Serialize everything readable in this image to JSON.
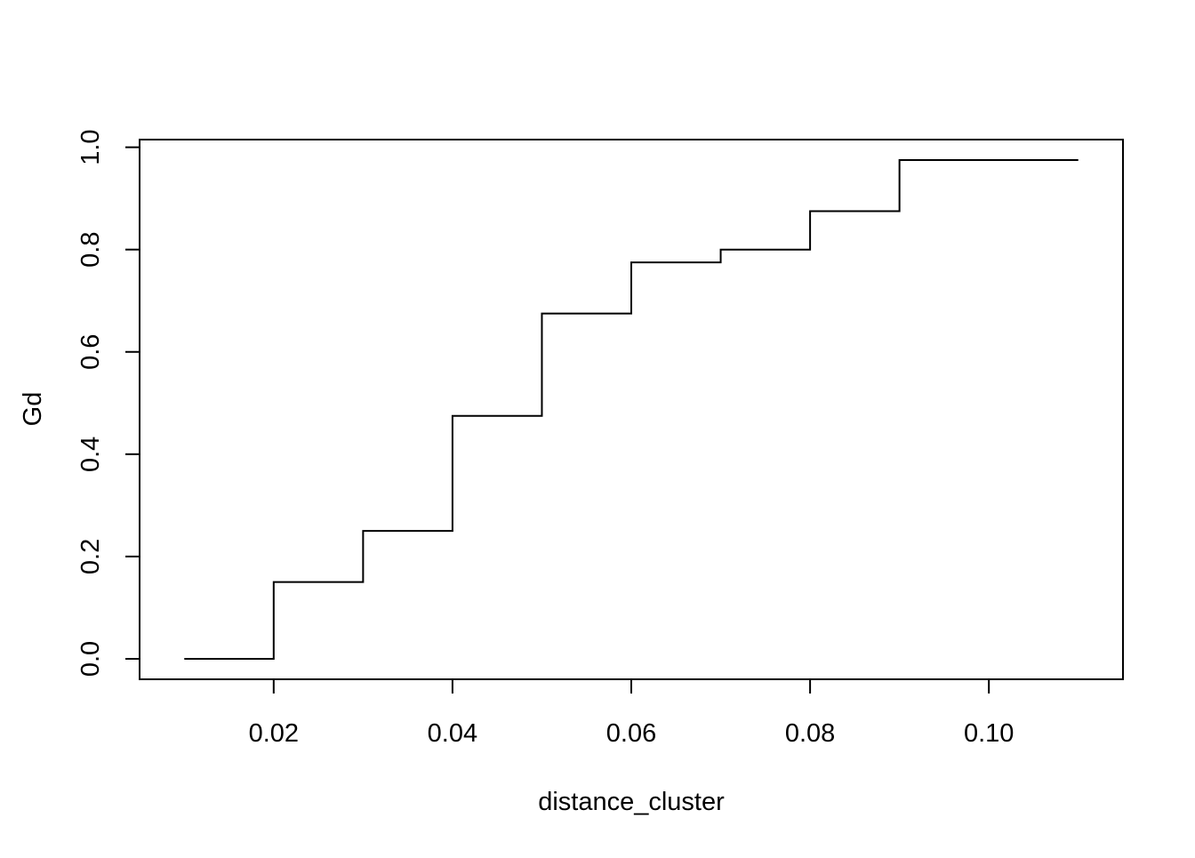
{
  "chart_data": {
    "type": "line",
    "subtype": "step",
    "title": "",
    "xlabel": "distance_cluster",
    "ylabel": "Gd",
    "xlim": [
      0.005,
      0.115
    ],
    "ylim": [
      -0.04,
      1.015
    ],
    "x_ticks": [
      0.02,
      0.04,
      0.06,
      0.08,
      0.1
    ],
    "x_tick_labels": [
      "0.02",
      "0.04",
      "0.06",
      "0.08",
      "0.10"
    ],
    "y_ticks": [
      0.0,
      0.2,
      0.4,
      0.6,
      0.8,
      1.0
    ],
    "y_tick_labels": [
      "0.0",
      "0.2",
      "0.4",
      "0.6",
      "0.8",
      "1.0"
    ],
    "grid": false,
    "series": [
      {
        "x": [
          0.01,
          0.02,
          0.03,
          0.04,
          0.05,
          0.06,
          0.07,
          0.08,
          0.09,
          0.11
        ],
        "y": [
          0.0,
          0.15,
          0.25,
          0.475,
          0.675,
          0.775,
          0.8,
          0.875,
          0.975,
          0.975
        ],
        "color": "#000000"
      }
    ]
  }
}
